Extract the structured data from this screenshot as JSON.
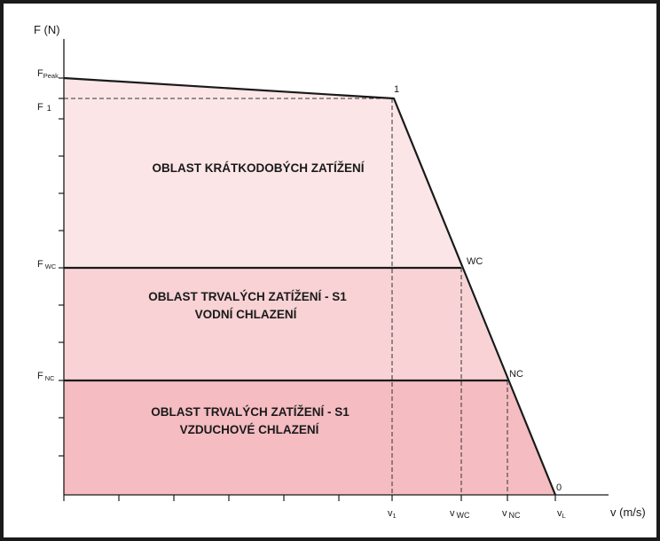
{
  "diagram": {
    "y_axis_label": "F (N)",
    "x_axis_label": "v (m/s)",
    "y_levels": [
      {
        "main": "F",
        "sub": "Peak"
      },
      {
        "main": "F",
        "sub": "1"
      },
      {
        "main": "F",
        "sub": "WC"
      },
      {
        "main": "F",
        "sub": "NC"
      }
    ],
    "x_marks": [
      {
        "main": "v",
        "sub": "1"
      },
      {
        "main": "v",
        "sub": "WC"
      },
      {
        "main": "v",
        "sub": "NC"
      },
      {
        "main": "v",
        "sub": "L"
      }
    ],
    "points": [
      "1",
      "WC",
      "NC",
      "0"
    ],
    "regions": [
      {
        "lines": [
          "OBLAST KRÁTKODOBÝCH ZATÍŽENÍ"
        ],
        "color": "#fbe5e6"
      },
      {
        "lines": [
          "OBLAST TRVALÝCH ZATÍŽENÍ  - S1",
          "VODNÍ CHLAZENÍ"
        ],
        "color": "#f8d2d4"
      },
      {
        "lines": [
          "OBLAST TRVALÝCH ZATÍŽENÍ - S1",
          "VZDUCHOVÉ CHLAZENÍ"
        ],
        "color": "#f5bcc2"
      }
    ]
  }
}
